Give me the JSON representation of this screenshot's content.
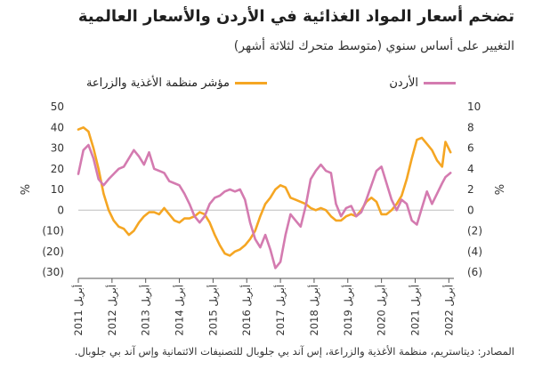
{
  "title": "تضخم أسعار المواد الغذائية في الأردن والأسعار العالمية",
  "subtitle": "التغيير على أساس سنوي (متوسط متحرك لثلاثة أشهر)",
  "source": "المصادر: ديتاستريم، منظمة الأغذية والزراعة، إس آند بي جلوبال للتصنيفات الائتمانية وإس آند بي جلوبال.",
  "colors": {
    "fao": "#f5a623",
    "jordan": "#d47bb0",
    "grid": "#e3e3e3",
    "axis": "#555555"
  },
  "chart_data": {
    "type": "line",
    "left_axis": {
      "label": "%",
      "ticks": [
        "50",
        "40",
        "30",
        "20",
        "10",
        "0",
        "(10)",
        "(20)",
        "(30)"
      ],
      "range": [
        -30,
        50
      ]
    },
    "right_axis": {
      "label": "%",
      "ticks": [
        "10",
        "8",
        "6",
        "4",
        "2",
        "0",
        "(2)",
        "(4)",
        "(6)"
      ],
      "range": [
        -6,
        10
      ]
    },
    "x_ticks": [
      {
        "t": 2011.25,
        "label": "أبريل 2011"
      },
      {
        "t": 2012.25,
        "label": "أبريل 2012"
      },
      {
        "t": 2013.25,
        "label": "أبريل 2013"
      },
      {
        "t": 2014.25,
        "label": "أبريل 2014"
      },
      {
        "t": 2015.25,
        "label": "أبريل 2015"
      },
      {
        "t": 2016.25,
        "label": "أبريل 2016"
      },
      {
        "t": 2017.25,
        "label": "أبريل 2017"
      },
      {
        "t": 2018.25,
        "label": "أبريل 2018"
      },
      {
        "t": 2019.25,
        "label": "أبريل 2019"
      },
      {
        "t": 2020.25,
        "label": "أبريل 2020"
      },
      {
        "t": 2021.25,
        "label": "أبريل 2021"
      },
      {
        "t": 2022.25,
        "label": "أبريل 2022"
      }
    ],
    "x_range": [
      2011.25,
      2022.4
    ],
    "series": [
      {
        "name": "مؤشر منظمة الأغذية والزراعة",
        "axis": "left",
        "color": "#f5a623",
        "points": [
          [
            2011.25,
            39
          ],
          [
            2011.4,
            40
          ],
          [
            2011.55,
            38
          ],
          [
            2011.7,
            30
          ],
          [
            2011.85,
            20
          ],
          [
            2012.0,
            8
          ],
          [
            2012.15,
            0
          ],
          [
            2012.3,
            -5
          ],
          [
            2012.45,
            -8
          ],
          [
            2012.6,
            -9
          ],
          [
            2012.75,
            -12
          ],
          [
            2012.9,
            -10
          ],
          [
            2013.05,
            -6
          ],
          [
            2013.2,
            -3
          ],
          [
            2013.35,
            -1
          ],
          [
            2013.5,
            -1
          ],
          [
            2013.65,
            -2
          ],
          [
            2013.8,
            1
          ],
          [
            2013.95,
            -2
          ],
          [
            2014.1,
            -5
          ],
          [
            2014.25,
            -6
          ],
          [
            2014.4,
            -4
          ],
          [
            2014.55,
            -4
          ],
          [
            2014.7,
            -3
          ],
          [
            2014.85,
            -1
          ],
          [
            2015.0,
            -2
          ],
          [
            2015.15,
            -6
          ],
          [
            2015.3,
            -12
          ],
          [
            2015.45,
            -17
          ],
          [
            2015.6,
            -21
          ],
          [
            2015.75,
            -22
          ],
          [
            2015.9,
            -20
          ],
          [
            2016.05,
            -19
          ],
          [
            2016.2,
            -17
          ],
          [
            2016.35,
            -14
          ],
          [
            2016.5,
            -10
          ],
          [
            2016.65,
            -3
          ],
          [
            2016.8,
            3
          ],
          [
            2016.95,
            6
          ],
          [
            2017.1,
            10
          ],
          [
            2017.25,
            12
          ],
          [
            2017.4,
            11
          ],
          [
            2017.55,
            6
          ],
          [
            2017.7,
            5
          ],
          [
            2017.85,
            4
          ],
          [
            2018.0,
            3
          ],
          [
            2018.15,
            1
          ],
          [
            2018.3,
            0
          ],
          [
            2018.45,
            1
          ],
          [
            2018.6,
            0
          ],
          [
            2018.75,
            -3
          ],
          [
            2018.9,
            -5
          ],
          [
            2019.05,
            -5
          ],
          [
            2019.2,
            -3
          ],
          [
            2019.35,
            -2
          ],
          [
            2019.5,
            -3
          ],
          [
            2019.65,
            0
          ],
          [
            2019.8,
            4
          ],
          [
            2019.95,
            6
          ],
          [
            2020.1,
            4
          ],
          [
            2020.25,
            -2
          ],
          [
            2020.4,
            -2
          ],
          [
            2020.55,
            0
          ],
          [
            2020.7,
            3
          ],
          [
            2020.85,
            7
          ],
          [
            2021.0,
            15
          ],
          [
            2021.15,
            25
          ],
          [
            2021.3,
            34
          ],
          [
            2021.45,
            35
          ],
          [
            2021.6,
            32
          ],
          [
            2021.75,
            29
          ],
          [
            2021.9,
            24
          ],
          [
            2022.05,
            21
          ],
          [
            2022.15,
            33
          ],
          [
            2022.3,
            28
          ]
        ]
      },
      {
        "name": "الأردن",
        "axis": "right",
        "color": "#d47bb0",
        "points": [
          [
            2011.25,
            3.5
          ],
          [
            2011.4,
            5.8
          ],
          [
            2011.55,
            6.3
          ],
          [
            2011.7,
            5.0
          ],
          [
            2011.85,
            3.0
          ],
          [
            2012.0,
            2.4
          ],
          [
            2012.15,
            3.0
          ],
          [
            2012.3,
            3.5
          ],
          [
            2012.45,
            4.0
          ],
          [
            2012.6,
            4.2
          ],
          [
            2012.75,
            5.0
          ],
          [
            2012.9,
            5.8
          ],
          [
            2013.05,
            5.2
          ],
          [
            2013.2,
            4.4
          ],
          [
            2013.35,
            5.6
          ],
          [
            2013.5,
            4.0
          ],
          [
            2013.65,
            3.8
          ],
          [
            2013.8,
            3.6
          ],
          [
            2013.95,
            2.8
          ],
          [
            2014.1,
            2.6
          ],
          [
            2014.25,
            2.4
          ],
          [
            2014.4,
            1.6
          ],
          [
            2014.55,
            0.6
          ],
          [
            2014.7,
            -0.6
          ],
          [
            2014.85,
            -1.2
          ],
          [
            2015.0,
            -0.6
          ],
          [
            2015.15,
            0.6
          ],
          [
            2015.3,
            1.2
          ],
          [
            2015.45,
            1.4
          ],
          [
            2015.6,
            1.8
          ],
          [
            2015.75,
            2.0
          ],
          [
            2015.9,
            1.8
          ],
          [
            2016.05,
            2.0
          ],
          [
            2016.2,
            1.0
          ],
          [
            2016.35,
            -1.2
          ],
          [
            2016.5,
            -2.8
          ],
          [
            2016.65,
            -3.6
          ],
          [
            2016.8,
            -2.4
          ],
          [
            2016.95,
            -3.8
          ],
          [
            2017.1,
            -5.6
          ],
          [
            2017.25,
            -5.0
          ],
          [
            2017.4,
            -2.4
          ],
          [
            2017.55,
            -0.4
          ],
          [
            2017.7,
            -1.0
          ],
          [
            2017.85,
            -1.6
          ],
          [
            2018.0,
            0.4
          ],
          [
            2018.15,
            3.0
          ],
          [
            2018.3,
            3.8
          ],
          [
            2018.45,
            4.4
          ],
          [
            2018.6,
            3.8
          ],
          [
            2018.75,
            3.6
          ],
          [
            2018.9,
            0.6
          ],
          [
            2019.05,
            -0.6
          ],
          [
            2019.2,
            0.2
          ],
          [
            2019.35,
            0.4
          ],
          [
            2019.5,
            -0.6
          ],
          [
            2019.65,
            -0.2
          ],
          [
            2019.8,
            1.0
          ],
          [
            2019.95,
            2.4
          ],
          [
            2020.1,
            3.8
          ],
          [
            2020.25,
            4.2
          ],
          [
            2020.4,
            2.6
          ],
          [
            2020.55,
            1.0
          ],
          [
            2020.7,
            0.0
          ],
          [
            2020.85,
            1.0
          ],
          [
            2021.0,
            0.6
          ],
          [
            2021.15,
            -1.0
          ],
          [
            2021.3,
            -1.4
          ],
          [
            2021.45,
            0.2
          ],
          [
            2021.6,
            1.8
          ],
          [
            2021.75,
            0.6
          ],
          [
            2021.9,
            1.6
          ],
          [
            2022.05,
            2.6
          ],
          [
            2022.15,
            3.2
          ],
          [
            2022.3,
            3.6
          ]
        ]
      }
    ]
  }
}
